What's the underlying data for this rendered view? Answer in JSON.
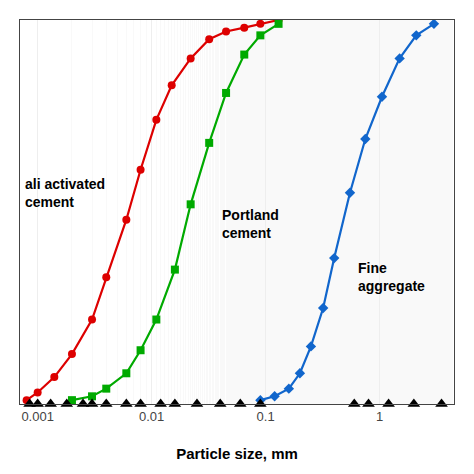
{
  "chart_data": {
    "type": "line",
    "xlabel": "Particle size, mm",
    "log": "x",
    "xlim": [
      0.0007,
      4.5
    ],
    "ylim": [
      0,
      100
    ],
    "xticks": [
      0.001,
      0.01,
      0.1,
      1
    ],
    "grid": true,
    "tick_labels": "x",
    "series": [
      {
        "color": "#dd0000",
        "marker": "circle",
        "x": [
          0.0008,
          0.001,
          0.0014,
          0.002,
          0.003,
          0.004,
          0.006,
          0.008,
          0.011,
          0.015,
          0.022,
          0.032,
          0.045,
          0.065,
          0.09,
          0.13
        ],
        "values": [
          1,
          3,
          7,
          13,
          22,
          33,
          48,
          61,
          74,
          83,
          90,
          95,
          97,
          98,
          99,
          100
        ]
      },
      {
        "color": "#00aa00",
        "marker": "square",
        "x": [
          0.002,
          0.003,
          0.004,
          0.006,
          0.008,
          0.011,
          0.016,
          0.022,
          0.032,
          0.045,
          0.065,
          0.09,
          0.13
        ],
        "values": [
          1,
          2,
          4,
          8,
          14,
          22,
          35,
          52,
          68,
          81,
          91,
          96,
          99
        ]
      },
      {
        "color": "#1166cc",
        "marker": "diamond",
        "x": [
          0.09,
          0.12,
          0.16,
          0.2,
          0.25,
          0.32,
          0.4,
          0.55,
          0.75,
          1.05,
          1.5,
          2.1,
          3.0
        ],
        "values": [
          1,
          2,
          4,
          8,
          15,
          25,
          38,
          55,
          69,
          80,
          90,
          96,
          99
        ]
      },
      {
        "type": "scatter",
        "color": "#000000",
        "marker": "triangle-up",
        "x": [
          0.00085,
          0.001,
          0.0013,
          0.0018,
          0.0025,
          0.003,
          0.004,
          0.006,
          0.008,
          0.012,
          0.016,
          0.025,
          0.04,
          0.06,
          0.09,
          0.6,
          0.8,
          1.2,
          2.0,
          3.5
        ],
        "values": [
          0,
          0,
          0,
          0,
          0,
          0,
          0,
          0,
          0,
          0,
          0,
          0,
          0,
          0,
          0,
          0,
          0,
          0,
          0,
          0
        ]
      }
    ],
    "annotations": [
      {
        "text": "ali activated\ncement",
        "x": 0.00075,
        "y": 55
      },
      {
        "text": "Portland\ncement",
        "x": 0.04,
        "y": 47
      },
      {
        "text": "Fine\naggregate",
        "x": 0.62,
        "y": 33
      }
    ]
  }
}
